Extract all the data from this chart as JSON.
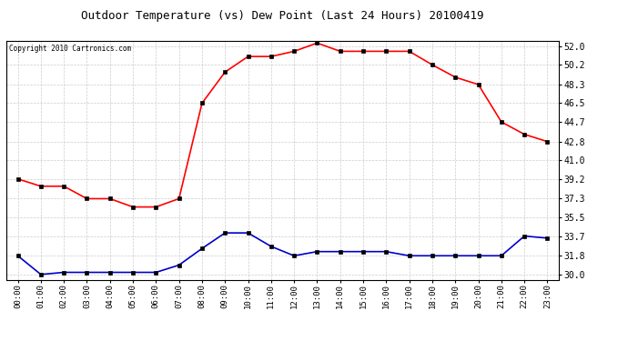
{
  "title": "Outdoor Temperature (vs) Dew Point (Last 24 Hours) 20100419",
  "copyright": "Copyright 2010 Cartronics.com",
  "hours": [
    "00:00",
    "01:00",
    "02:00",
    "03:00",
    "04:00",
    "05:00",
    "06:00",
    "07:00",
    "08:00",
    "09:00",
    "10:00",
    "11:00",
    "12:00",
    "13:00",
    "14:00",
    "15:00",
    "16:00",
    "17:00",
    "18:00",
    "19:00",
    "20:00",
    "21:00",
    "22:00",
    "23:00"
  ],
  "temp": [
    39.2,
    38.5,
    38.5,
    37.3,
    37.3,
    36.5,
    36.5,
    37.3,
    46.5,
    49.5,
    51.0,
    51.0,
    51.5,
    52.3,
    51.5,
    51.5,
    51.5,
    51.5,
    50.2,
    49.0,
    48.3,
    44.7,
    43.5,
    42.8
  ],
  "dew": [
    31.8,
    30.0,
    30.2,
    30.2,
    30.2,
    30.2,
    30.2,
    30.9,
    32.5,
    34.0,
    34.0,
    32.7,
    31.8,
    32.2,
    32.2,
    32.2,
    32.2,
    31.8,
    31.8,
    31.8,
    31.8,
    31.8,
    33.7,
    33.5
  ],
  "temp_color": "#ff0000",
  "dew_color": "#0000cc",
  "bg_color": "#ffffff",
  "grid_color": "#cccccc",
  "yticks": [
    30.0,
    31.8,
    33.7,
    35.5,
    37.3,
    39.2,
    41.0,
    42.8,
    44.7,
    46.5,
    48.3,
    50.2,
    52.0
  ],
  "ylim": [
    29.5,
    52.5
  ],
  "markersize": 3,
  "linewidth": 1.2
}
